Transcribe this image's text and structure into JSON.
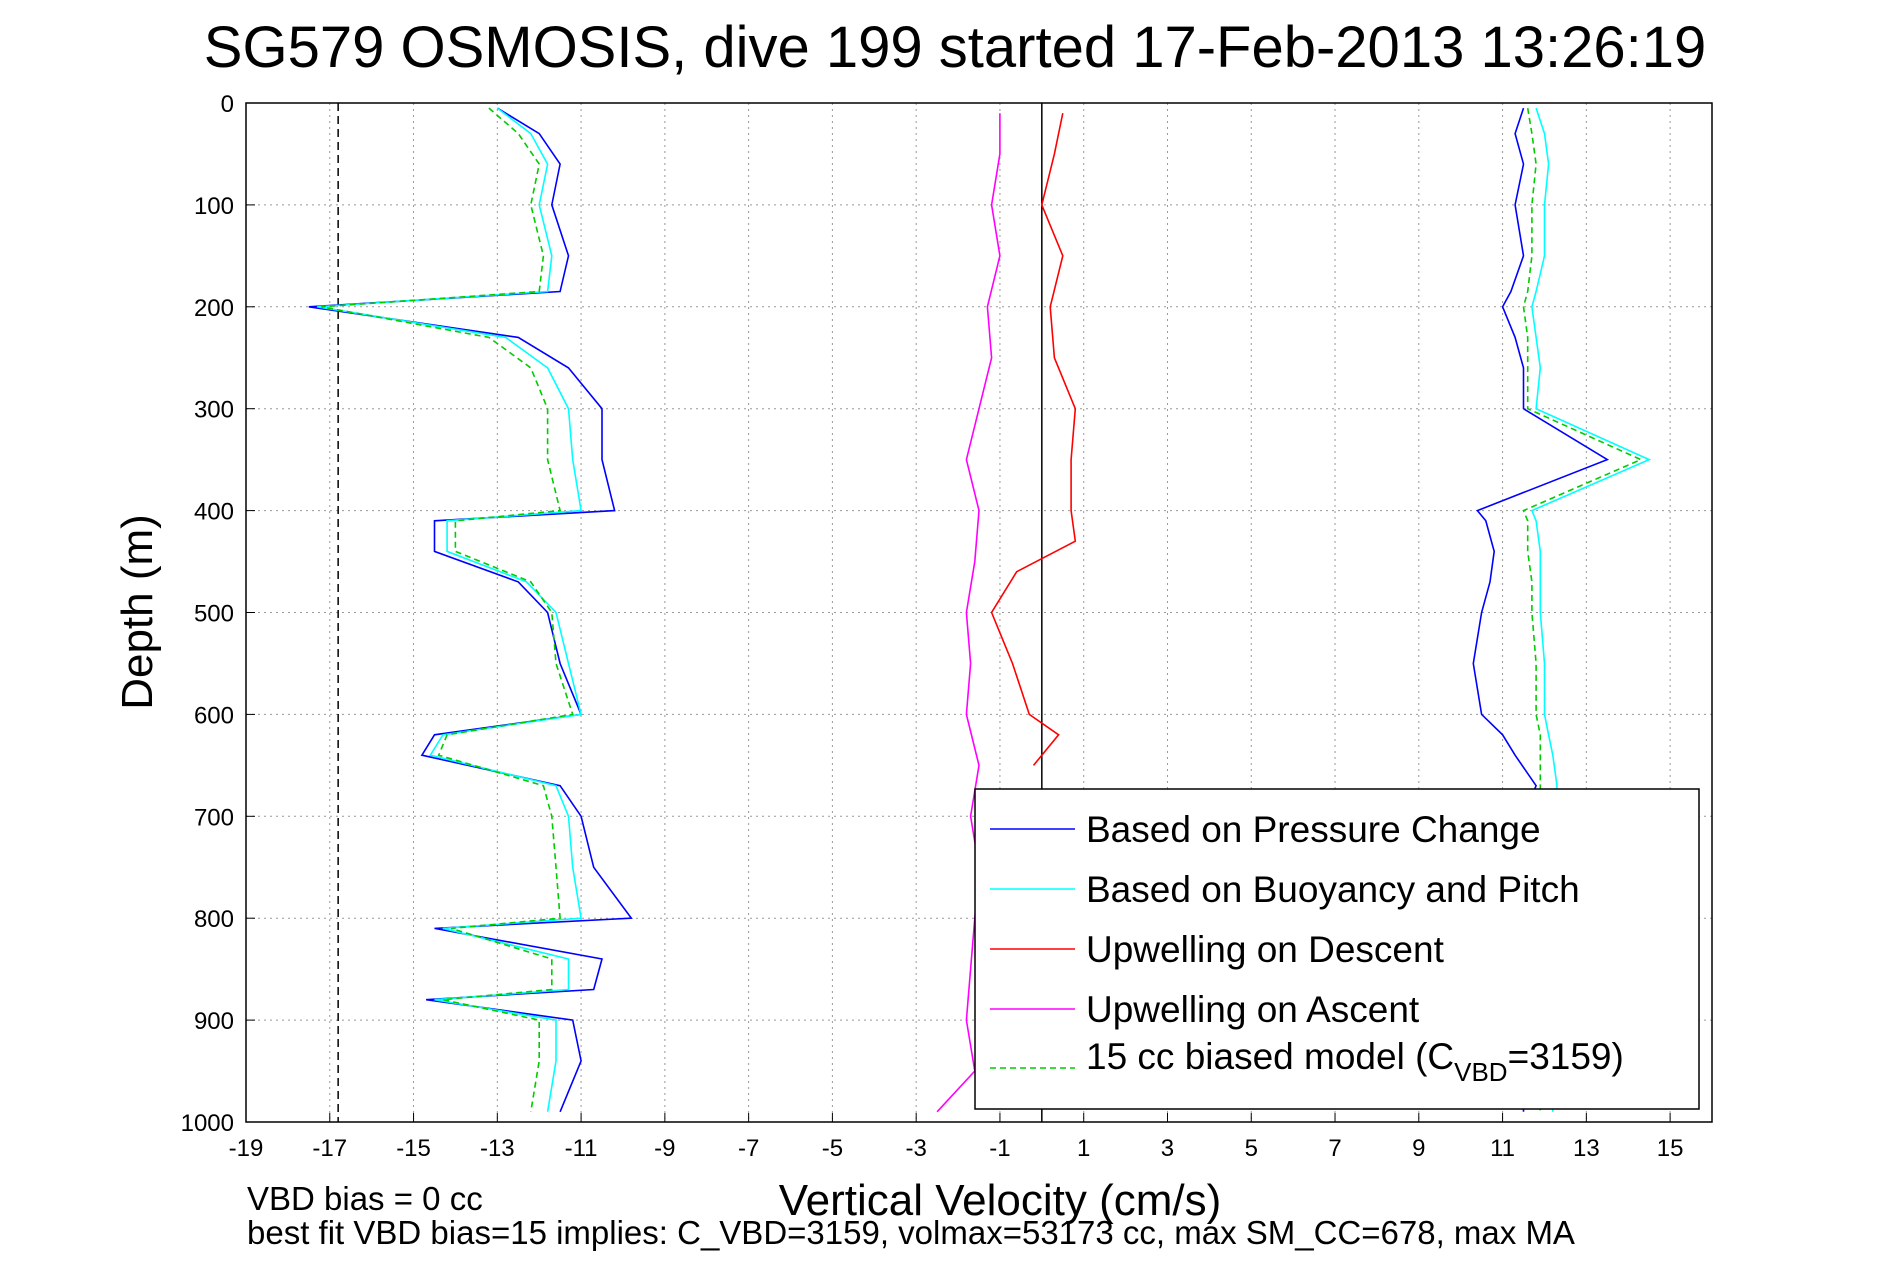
{
  "chart_data": {
    "type": "line",
    "title": "SG579 OSMOSIS, dive 199 started 17-Feb-2013 13:26:19",
    "xlabel": "Vertical Velocity (cm/s)",
    "ylabel": "Depth (m)",
    "xlim": [
      -19,
      16
    ],
    "ylim": [
      0,
      1000
    ],
    "y_reversed": true,
    "grid": true,
    "xticks": [
      -19,
      -17,
      -15,
      -13,
      -11,
      -9,
      -7,
      -5,
      -3,
      -1,
      1,
      3,
      5,
      7,
      9,
      11,
      13,
      15
    ],
    "yticks": [
      0,
      100,
      200,
      300,
      400,
      500,
      600,
      700,
      800,
      900,
      1000
    ],
    "legend_position": "bottom-right",
    "reference_lines": [
      {
        "orientation": "vertical",
        "x": -16.8,
        "style": "dashed",
        "color": "#000000"
      },
      {
        "orientation": "vertical",
        "x": 0,
        "style": "solid",
        "color": "#000000"
      }
    ],
    "series": [
      {
        "name": "Based on Pressure Change",
        "color": "#0000ff",
        "style": "solid",
        "depth": [
          5,
          30,
          60,
          100,
          150,
          185,
          200,
          230,
          260,
          300,
          350,
          400,
          410,
          440,
          470,
          500,
          550,
          600,
          620,
          640,
          670,
          700,
          750,
          800,
          810,
          840,
          870,
          880,
          900,
          940,
          990
        ],
        "descent": [
          -13,
          -12,
          -11.5,
          -11.7,
          -11.3,
          -11.5,
          -17.5,
          -12.5,
          -11.3,
          -10.5,
          -10.5,
          -10.2,
          -14.5,
          -14.5,
          -12.5,
          -11.8,
          -11.5,
          -11,
          -14.5,
          -14.8,
          -11.5,
          -11,
          -10.7,
          -9.8,
          -14.5,
          -10.5,
          -10.7,
          -14.7,
          -11.2,
          -11,
          -11.5
        ],
        "ascent": [
          11.5,
          11.3,
          11.5,
          11.3,
          11.5,
          11.2,
          11.0,
          11.3,
          11.5,
          11.5,
          13.5,
          10.4,
          10.6,
          10.8,
          10.7,
          10.5,
          10.3,
          10.5,
          11.0,
          11.3,
          11.8,
          11.5,
          11.5,
          11.5,
          11.5,
          11.5,
          11.5,
          11.5,
          11.5,
          11.5,
          11.5
        ]
      },
      {
        "name": "Based on Buoyancy and Pitch",
        "color": "#00ffff",
        "style": "solid",
        "depth": [
          5,
          30,
          60,
          100,
          150,
          185,
          200,
          230,
          260,
          300,
          350,
          400,
          410,
          440,
          470,
          500,
          550,
          600,
          620,
          640,
          670,
          700,
          750,
          800,
          810,
          840,
          870,
          880,
          900,
          940,
          990
        ],
        "descent": [
          -13,
          -12.2,
          -11.8,
          -12,
          -11.7,
          -11.8,
          -17.3,
          -12.8,
          -11.8,
          -11.3,
          -11.2,
          -11,
          -14.2,
          -14.2,
          -12.3,
          -11.6,
          -11.3,
          -11,
          -14.3,
          -14.6,
          -11.6,
          -11.3,
          -11.2,
          -11,
          -14.3,
          -11.3,
          -11.3,
          -14.5,
          -11.6,
          -11.6,
          -11.8
        ],
        "ascent": [
          11.8,
          12.0,
          12.1,
          12.0,
          12.0,
          11.8,
          11.7,
          11.8,
          11.9,
          11.8,
          14.5,
          11.7,
          11.8,
          11.9,
          11.9,
          11.9,
          12.0,
          12.0,
          12.1,
          12.2,
          12.3,
          12.2,
          12.2,
          12.2,
          12.2,
          12.2,
          12.2,
          12.2,
          12.2,
          12.2,
          12.2
        ]
      },
      {
        "name": "Upwelling on Descent",
        "color": "#ff0000",
        "style": "solid",
        "depth": [
          10,
          50,
          100,
          150,
          200,
          250,
          300,
          350,
          400,
          430,
          460,
          500,
          550,
          600,
          620,
          650
        ],
        "values": [
          0.5,
          0.3,
          0,
          0.5,
          0.2,
          0.3,
          0.8,
          0.7,
          0.7,
          0.8,
          -0.6,
          -1.2,
          -0.7,
          -0.3,
          0.4,
          -0.2
        ]
      },
      {
        "name": "Upwelling on Ascent",
        "color": "#ff00ff",
        "style": "solid",
        "depth": [
          10,
          50,
          100,
          150,
          200,
          250,
          300,
          350,
          400,
          450,
          500,
          550,
          600,
          650,
          700,
          750,
          800,
          850,
          900,
          950,
          990
        ],
        "values": [
          -1,
          -1,
          -1.2,
          -1,
          -1.3,
          -1.2,
          -1.5,
          -1.8,
          -1.5,
          -1.6,
          -1.8,
          -1.7,
          -1.8,
          -1.5,
          -1.7,
          -1.5,
          -1.6,
          -1.7,
          -1.8,
          -1.6,
          -2.5
        ]
      },
      {
        "name": "15 cc biased model (C_VBD=3159)",
        "color": "#00cc00",
        "style": "dashed",
        "depth": [
          5,
          30,
          60,
          100,
          150,
          185,
          200,
          230,
          260,
          300,
          350,
          400,
          410,
          440,
          470,
          500,
          550,
          600,
          620,
          640,
          670,
          700,
          750,
          800,
          810,
          840,
          870,
          880,
          900,
          940,
          990
        ],
        "descent": [
          -13.2,
          -12.5,
          -12,
          -12.2,
          -11.9,
          -12,
          -17.2,
          -13.2,
          -12.2,
          -11.8,
          -11.8,
          -11.5,
          -14,
          -14,
          -12.2,
          -11.7,
          -11.6,
          -11.2,
          -14.2,
          -14.4,
          -11.9,
          -11.7,
          -11.6,
          -11.5,
          -14.1,
          -11.7,
          -11.7,
          -14.3,
          -12,
          -12,
          -12.2
        ],
        "ascent": [
          11.6,
          11.7,
          11.8,
          11.7,
          11.7,
          11.6,
          11.5,
          11.6,
          11.6,
          11.6,
          14.3,
          11.5,
          11.6,
          11.6,
          11.7,
          11.7,
          11.8,
          11.8,
          11.9,
          11.9,
          11.9,
          11.9,
          11.9,
          11.9,
          11.9,
          11.9,
          11.9,
          11.9,
          11.9,
          11.9,
          11.9
        ]
      }
    ]
  },
  "legend": {
    "entries": [
      {
        "text": "Based on Pressure Change",
        "color": "#0000ff",
        "dash": ""
      },
      {
        "text": "Based on Buoyancy and Pitch",
        "color": "#00ffff",
        "dash": ""
      },
      {
        "text": "Upwelling on Descent",
        "color": "#ff0000",
        "dash": ""
      },
      {
        "text": "Upwelling on Ascent",
        "color": "#ff00ff",
        "dash": ""
      }
    ],
    "model_entry": {
      "prefix": "15 cc biased model (C",
      "sub": "VBD",
      "suffix": "=3159)",
      "color": "#00cc00"
    }
  },
  "footnotes": {
    "line1": "VBD bias = 0 cc",
    "line2": "best fit VBD bias=15 implies: C_VBD=3159, volmax=53173 cc, max SM_CC=678, max MA"
  }
}
